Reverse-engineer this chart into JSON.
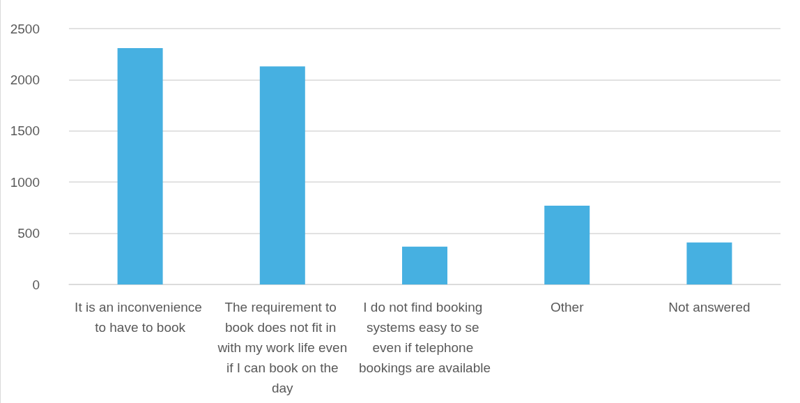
{
  "chart_data": {
    "type": "bar",
    "categories": [
      "It is an inconvenience to have to book",
      "The requirement to book does not fit in with my work life even if I can book on the day",
      "I do not find booking systems easy to se even if telephone bookings are available",
      "Other",
      "Not answered"
    ],
    "values": [
      2310,
      2130,
      370,
      770,
      410
    ],
    "color": "#46b0e1",
    "ylim": [
      0,
      2500
    ],
    "yticks": [
      0,
      500,
      1000,
      1500,
      2000,
      2500
    ],
    "grid": "y"
  }
}
